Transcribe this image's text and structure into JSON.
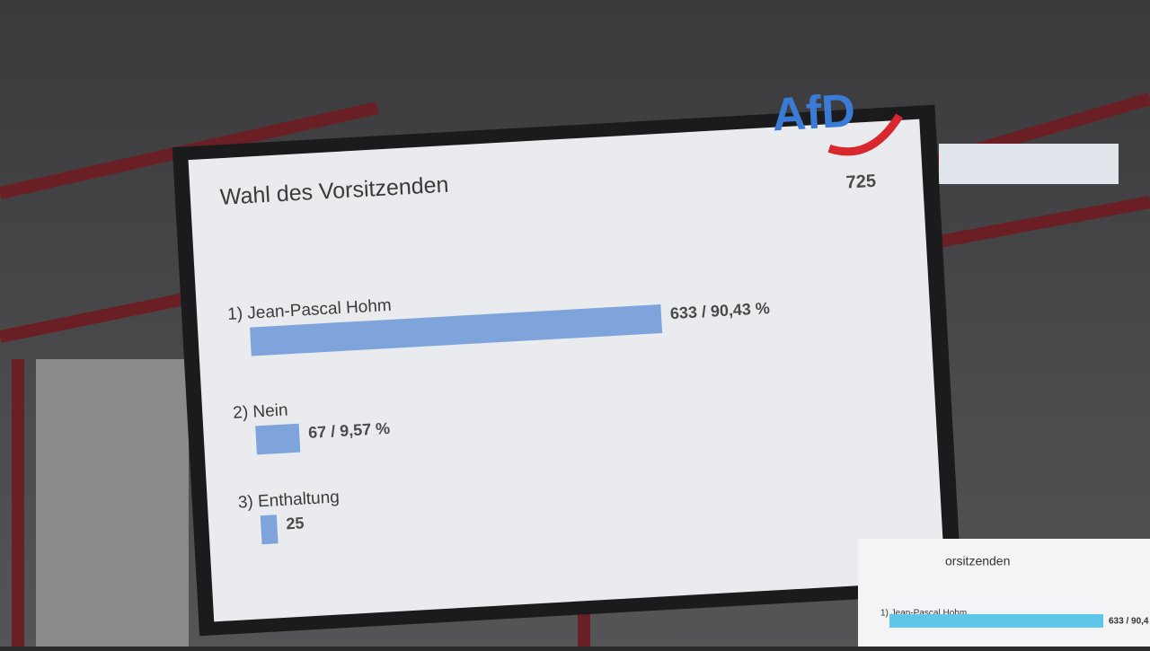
{
  "chart_data": {
    "type": "hbar",
    "title": "Wahl des Vorsitzenden",
    "logo": "AfD",
    "total": "725",
    "categories": [
      "1) Jean-Pascal Hohm",
      "2) Nein",
      "3) Enthaltung"
    ],
    "values": [
      633,
      67,
      25
    ],
    "value_labels": [
      "633 / 90,43 %",
      "67 / 9,57 %",
      "25"
    ],
    "color": "#7fa4dc"
  },
  "second_screen": {
    "title": "orsitzenden",
    "label": "1) Jean-Pascal Hohm",
    "value_label": "633 / 90,4",
    "color": "#5ec6e8"
  }
}
